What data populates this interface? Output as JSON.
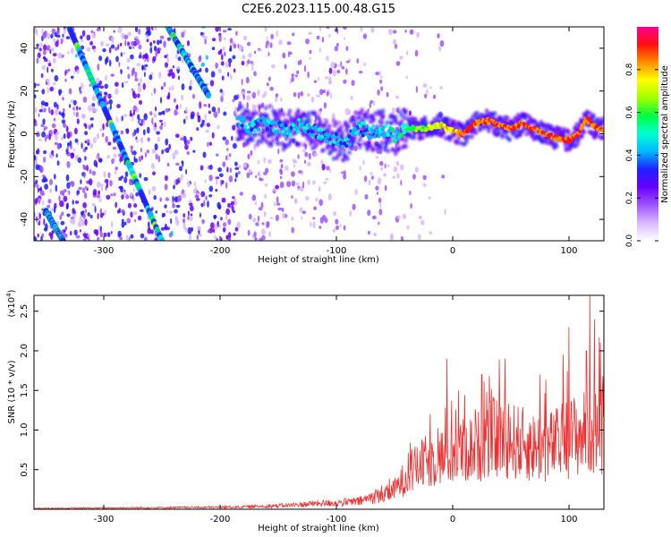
{
  "title": "C2E6.2023.115.00.48.G15",
  "chart_data": [
    {
      "type": "heatmap",
      "xlabel": "Height of straight line (km)",
      "ylabel": "Frequency (Hz)",
      "xlim": [
        -360,
        130
      ],
      "ylim": [
        -50,
        50
      ],
      "xticks": [
        -300,
        -200,
        -100,
        0,
        100
      ],
      "yticks": [
        -40,
        -20,
        0,
        20,
        40
      ],
      "colorbar": {
        "label": "Normalized spectral amplitude",
        "range": [
          0.0,
          1.0
        ],
        "ticks": [
          "0.0",
          "0.2",
          "0.4",
          "0.6",
          "0.8"
        ],
        "tick_values": [
          0.0,
          0.2,
          0.4,
          0.6,
          0.8
        ],
        "colors": [
          "#ffffff",
          "#d9b8ff",
          "#a055ff",
          "#6a00ff",
          "#1f1fff",
          "#00b8ff",
          "#00ffd0",
          "#00ff40",
          "#a0ff00",
          "#ffff00",
          "#ff9000",
          "#ff1010",
          "#ff0090"
        ]
      },
      "features": {
        "main_trace": [
          [
            -185,
            6
          ],
          [
            -175,
            3
          ],
          [
            -160,
            5
          ],
          [
            -145,
            1
          ],
          [
            -130,
            4
          ],
          [
            -115,
            0
          ],
          [
            -100,
            -3
          ],
          [
            -90,
            -4
          ],
          [
            -82,
            3
          ],
          [
            -70,
            1
          ],
          [
            -60,
            2
          ],
          [
            -50,
            -1
          ],
          [
            -42,
            3
          ],
          [
            -30,
            2
          ],
          [
            -20,
            3
          ],
          [
            -10,
            4
          ],
          [
            0,
            1
          ],
          [
            10,
            0
          ],
          [
            20,
            5
          ],
          [
            30,
            6
          ],
          [
            40,
            4
          ],
          [
            50,
            2
          ],
          [
            60,
            5
          ],
          [
            70,
            2
          ],
          [
            80,
            0
          ],
          [
            90,
            -2
          ],
          [
            100,
            -3
          ],
          [
            108,
            0
          ],
          [
            115,
            7
          ],
          [
            122,
            3
          ],
          [
            130,
            2
          ]
        ],
        "diagonal_traces": [
          {
            "from": [
              -330,
              50
            ],
            "to": [
              -250,
              -50
            ]
          },
          {
            "from": [
              -245,
              50
            ],
            "to": [
              -210,
              18
            ]
          },
          {
            "from": [
              -350,
              -36
            ],
            "to": [
              -335,
              -50
            ]
          }
        ]
      }
    },
    {
      "type": "line",
      "xlabel": "Height of straight line (km)",
      "ylabel": "SNR (10 * v/v)",
      "scale_label": "(x10",
      "scale_exponent": "4",
      "xlim": [
        -360,
        130
      ],
      "ylim": [
        0,
        2.7
      ],
      "xticks": [
        -300,
        -200,
        -100,
        0,
        100
      ],
      "yticks": [
        0.5,
        1.0,
        1.5,
        2.0,
        2.5
      ],
      "ytick_labels": [
        "0.5",
        "1.0",
        "1.5",
        "2.0",
        "2.5"
      ],
      "series": [
        {
          "color": "#ee3030",
          "envelope": [
            [
              -360,
              0.01
            ],
            [
              -300,
              0.015
            ],
            [
              -250,
              0.02
            ],
            [
              -200,
              0.025
            ],
            [
              -180,
              0.03
            ],
            [
              -160,
              0.04
            ],
            [
              -140,
              0.05
            ],
            [
              -120,
              0.07
            ],
            [
              -100,
              0.08
            ],
            [
              -80,
              0.1
            ],
            [
              -60,
              0.2
            ],
            [
              -50,
              0.3
            ],
            [
              -40,
              0.5
            ],
            [
              -30,
              0.65
            ],
            [
              -20,
              0.75
            ],
            [
              -10,
              0.8
            ],
            [
              0,
              0.85
            ],
            [
              10,
              0.9
            ],
            [
              20,
              0.95
            ],
            [
              30,
              1.05
            ],
            [
              40,
              1.1
            ],
            [
              50,
              1.05
            ],
            [
              60,
              1.0
            ],
            [
              70,
              0.95
            ],
            [
              80,
              0.95
            ],
            [
              90,
              1.0
            ],
            [
              100,
              1.1
            ],
            [
              110,
              1.15
            ],
            [
              120,
              1.2
            ],
            [
              130,
              1.25
            ]
          ],
          "peaks": [
            [
              -5,
              1.9
            ],
            [
              5,
              1.5
            ],
            [
              25,
              1.7
            ],
            [
              45,
              1.9
            ],
            [
              75,
              1.7
            ],
            [
              95,
              1.95
            ],
            [
              100,
              2.3
            ],
            [
              115,
              2.0
            ],
            [
              118,
              2.7
            ],
            [
              122,
              2.4
            ],
            [
              127,
              2.1
            ]
          ]
        }
      ]
    }
  ]
}
